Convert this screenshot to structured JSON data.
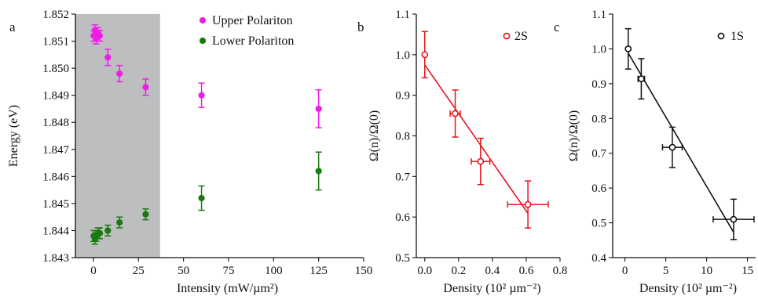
{
  "chart_data": [
    {
      "panel": "a",
      "type": "scatter",
      "xlabel": "Intensity (mW/µm²)",
      "ylabel": "Energy (eV)",
      "xlim": [
        -10,
        150
      ],
      "ylim": [
        1.843,
        1.852
      ],
      "xticks": [
        0,
        25,
        50,
        75,
        100,
        125,
        150
      ],
      "yticks": [
        "1.843",
        "1.844",
        "1.845",
        "1.846",
        "1.847",
        "1.848",
        "1.849",
        "1.850",
        "1.851",
        "1.852"
      ],
      "shaded_region": [
        -10,
        37
      ],
      "shaded_color": "#bdbebf",
      "legend_position": "top-right",
      "series": [
        {
          "name": "Upper Polariton",
          "color": "#ee1ee8",
          "points": [
            {
              "x": 0.2,
              "y": 1.8512,
              "err": 0.0002
            },
            {
              "x": 0.8,
              "y": 1.8514,
              "err": 0.0002
            },
            {
              "x": 1.5,
              "y": 1.8511,
              "err": 0.0002
            },
            {
              "x": 2.5,
              "y": 1.8513,
              "err": 0.0002
            },
            {
              "x": 3.5,
              "y": 1.8512,
              "err": 0.0002
            },
            {
              "x": 8,
              "y": 1.8504,
              "err": 0.0003
            },
            {
              "x": 14.5,
              "y": 1.8498,
              "err": 0.0003
            },
            {
              "x": 29,
              "y": 1.8493,
              "err": 0.0003
            },
            {
              "x": 60,
              "y": 1.849,
              "err": 0.00045
            },
            {
              "x": 125,
              "y": 1.8485,
              "err": 0.0007
            }
          ]
        },
        {
          "name": "Lower Polariton",
          "color": "#1a7a12",
          "points": [
            {
              "x": 0.2,
              "y": 1.8438,
              "err": 0.0002
            },
            {
              "x": 0.8,
              "y": 1.8437,
              "err": 0.0002
            },
            {
              "x": 1.5,
              "y": 1.8438,
              "err": 0.0002
            },
            {
              "x": 2.5,
              "y": 1.8439,
              "err": 0.0002
            },
            {
              "x": 3.5,
              "y": 1.8439,
              "err": 0.0002
            },
            {
              "x": 8,
              "y": 1.844,
              "err": 0.0002
            },
            {
              "x": 14.5,
              "y": 1.8443,
              "err": 0.0002
            },
            {
              "x": 29,
              "y": 1.8446,
              "err": 0.0002
            },
            {
              "x": 60,
              "y": 1.8452,
              "err": 0.00045
            },
            {
              "x": 125,
              "y": 1.8462,
              "err": 0.0007
            }
          ]
        }
      ]
    },
    {
      "panel": "b",
      "type": "scatter",
      "xlabel": "Density (10² µm⁻²)",
      "ylabel": "Ω(n)/Ω(0)",
      "xlim": [
        -0.05,
        0.8
      ],
      "ylim": [
        0.5,
        1.1
      ],
      "xticks": [
        "0.0",
        "0.2",
        "0.4",
        "0.6",
        "0.8"
      ],
      "yticks": [
        "0.5",
        "0.6",
        "0.7",
        "0.8",
        "0.9",
        "1.0",
        "1.1"
      ],
      "legend_position": "top-right",
      "series": [
        {
          "name": "2S",
          "color": "#e8141b",
          "points": [
            {
              "x": 0.0,
              "y": 1.0,
              "yerr": 0.057,
              "xerr": 0
            },
            {
              "x": 0.18,
              "y": 0.855,
              "yerr": 0.058,
              "xerr": 0.03
            },
            {
              "x": 0.33,
              "y": 0.737,
              "yerr": 0.057,
              "xerr": 0.055
            },
            {
              "x": 0.61,
              "y": 0.631,
              "yerr": 0.058,
              "xerr": 0.12
            }
          ],
          "fit": {
            "x": [
              0.0,
              0.61
            ],
            "y": [
              0.975,
              0.609
            ]
          }
        }
      ]
    },
    {
      "panel": "c",
      "type": "scatter",
      "xlabel": "Density (10² µm⁻²)",
      "ylabel": "Ω(n)/Ω(0)",
      "xlim": [
        -1.5,
        16
      ],
      "ylim": [
        0.4,
        1.1
      ],
      "xticks": [
        "0",
        "5",
        "10",
        "15"
      ],
      "yticks": [
        "0.4",
        "0.5",
        "0.6",
        "0.7",
        "0.8",
        "0.9",
        "1.0",
        "1.1"
      ],
      "legend_position": "top-right",
      "series": [
        {
          "name": "1S",
          "color": "#111111",
          "points": [
            {
              "x": 0.4,
              "y": 1.0,
              "yerr": 0.058,
              "xerr": 0
            },
            {
              "x": 2.0,
              "y": 0.914,
              "yerr": 0.058,
              "xerr": 0.4
            },
            {
              "x": 5.8,
              "y": 0.717,
              "yerr": 0.058,
              "xerr": 1.2
            },
            {
              "x": 13.3,
              "y": 0.51,
              "yerr": 0.058,
              "xerr": 2.5
            }
          ],
          "fit": {
            "x": [
              0.4,
              13.3
            ],
            "y": [
              0.988,
              0.473
            ]
          }
        }
      ]
    }
  ]
}
